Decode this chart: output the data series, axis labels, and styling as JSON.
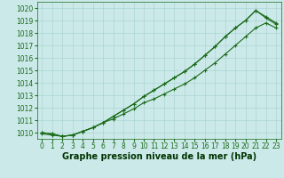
{
  "x": [
    0,
    1,
    2,
    3,
    4,
    5,
    6,
    7,
    8,
    9,
    10,
    11,
    12,
    13,
    14,
    15,
    16,
    17,
    18,
    19,
    20,
    21,
    22,
    23
  ],
  "series1": [
    1010.0,
    1009.9,
    1009.7,
    1009.8,
    1010.1,
    1010.4,
    1010.8,
    1011.3,
    1011.8,
    1012.3,
    1012.9,
    1013.4,
    1013.9,
    1014.4,
    1014.9,
    1015.5,
    1016.2,
    1016.9,
    1017.7,
    1018.4,
    1019.0,
    1019.8,
    1019.3,
    1018.8
  ],
  "series2": [
    1010.0,
    1009.9,
    1009.7,
    1009.8,
    1010.1,
    1010.4,
    1010.8,
    1011.3,
    1011.8,
    1012.3,
    1012.9,
    1013.4,
    1013.9,
    1014.4,
    1014.9,
    1015.5,
    1016.2,
    1016.9,
    1017.7,
    1018.4,
    1019.0,
    1019.8,
    1019.2,
    1018.7
  ],
  "series3": [
    1009.9,
    1009.8,
    1009.7,
    1009.8,
    1010.1,
    1010.4,
    1010.8,
    1011.1,
    1011.5,
    1011.9,
    1012.4,
    1012.7,
    1013.1,
    1013.5,
    1013.9,
    1014.4,
    1015.0,
    1015.6,
    1016.3,
    1017.0,
    1017.7,
    1018.4,
    1018.8,
    1018.4
  ],
  "ylim_min": 1009.5,
  "ylim_max": 1020.5,
  "yticks": [
    1010,
    1011,
    1012,
    1013,
    1014,
    1015,
    1016,
    1017,
    1018,
    1019,
    1020
  ],
  "xticks": [
    0,
    1,
    2,
    3,
    4,
    5,
    6,
    7,
    8,
    9,
    10,
    11,
    12,
    13,
    14,
    15,
    16,
    17,
    18,
    19,
    20,
    21,
    22,
    23
  ],
  "line_color": "#1a6b1a",
  "bg_color": "#cce9e9",
  "grid_color": "#aad4d4",
  "xlabel": "Graphe pression niveau de la mer (hPa)",
  "xlabel_color": "#003300",
  "tick_fontsize": 5.5,
  "label_fontsize": 7,
  "marker": "+",
  "marker_size": 3,
  "lw": 0.8
}
